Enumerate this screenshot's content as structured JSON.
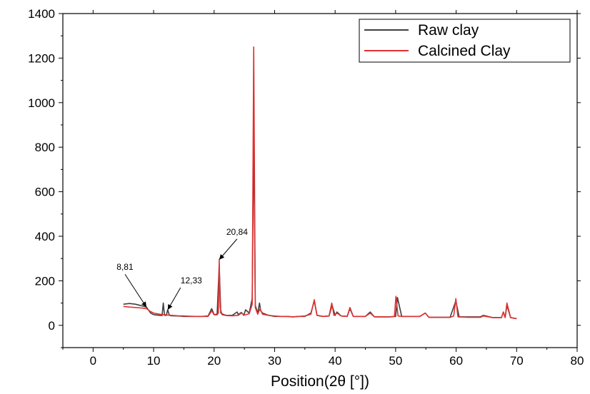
{
  "chart_data": {
    "type": "line",
    "title": "",
    "xlabel": "Position(2θ [°])",
    "ylabel": "",
    "xlim": [
      -5,
      80
    ],
    "ylim": [
      -100,
      1400
    ],
    "xticks": [
      0,
      10,
      20,
      30,
      40,
      50,
      60,
      70,
      80
    ],
    "yticks": [
      0,
      200,
      400,
      600,
      800,
      1000,
      1200,
      1400
    ],
    "grid": false,
    "legend_position": "top-right",
    "colors": {
      "raw": "#404040",
      "calcined": "#e03131",
      "axis": "#000000"
    },
    "series": [
      {
        "name": "Raw clay",
        "x": [
          5,
          6,
          7,
          8,
          8.81,
          9.5,
          10,
          11,
          11.4,
          11.6,
          11.8,
          12.1,
          12.33,
          12.6,
          13,
          14,
          15,
          16,
          17,
          18,
          19,
          19.6,
          20,
          20.5,
          20.84,
          21.1,
          21.6,
          22,
          23,
          23.8,
          24,
          24.5,
          24.9,
          25.2,
          25.8,
          26.3,
          26.55,
          26.8,
          27.2,
          27.5,
          27.7,
          28,
          29,
          30,
          31,
          32,
          33,
          34,
          35,
          36,
          36.55,
          37,
          38,
          39,
          39.5,
          40,
          40.3,
          41,
          42,
          42.45,
          43,
          44,
          45,
          45.8,
          46.5,
          48,
          49,
          50,
          50.3,
          51,
          52,
          53,
          54,
          54.9,
          55.5,
          57,
          59,
          59.95,
          60.5,
          62,
          64,
          64.5,
          66,
          67.5,
          67.8,
          68.1,
          68.4,
          69,
          70
        ],
        "values": [
          95,
          98,
          95,
          88,
          82,
          55,
          48,
          45,
          44,
          100,
          45,
          45,
          70,
          45,
          43,
          42,
          40,
          40,
          40,
          40,
          42,
          75,
          48,
          50,
          270,
          55,
          48,
          45,
          45,
          60,
          48,
          58,
          45,
          70,
          55,
          120,
          880,
          90,
          55,
          100,
          65,
          55,
          45,
          40,
          40,
          40,
          38,
          40,
          40,
          55,
          110,
          45,
          40,
          42,
          90,
          45,
          60,
          42,
          40,
          75,
          40,
          40,
          40,
          60,
          38,
          38,
          38,
          40,
          125,
          40,
          40,
          40,
          40,
          55,
          36,
          36,
          36,
          110,
          38,
          38,
          38,
          45,
          35,
          35,
          60,
          35,
          90,
          35,
          30
        ]
      },
      {
        "name": "Calcined Clay",
        "x": [
          5,
          6,
          7,
          8,
          8.81,
          9.5,
          10,
          11,
          11.5,
          12,
          12.33,
          13,
          14,
          15,
          16,
          17,
          18,
          19,
          19.6,
          20,
          20.5,
          20.7,
          20.84,
          21.0,
          21.3,
          22,
          23,
          24,
          24.5,
          25,
          25.8,
          26.3,
          26.55,
          26.8,
          27.2,
          27.6,
          28,
          29,
          30,
          31,
          32,
          33,
          34,
          35,
          36,
          36.55,
          37,
          38,
          39,
          39.45,
          39.8,
          40.3,
          41,
          42,
          42.45,
          43,
          44,
          45,
          45.8,
          46.5,
          48,
          49,
          49.8,
          50.05,
          50.4,
          51,
          52,
          53,
          54,
          54.9,
          55.5,
          57,
          59,
          59.6,
          59.95,
          60.3,
          62,
          64,
          64.5,
          66,
          67.5,
          67.8,
          68.1,
          68.4,
          69,
          70
        ],
        "values": [
          85,
          82,
          80,
          78,
          75,
          62,
          55,
          50,
          48,
          47,
          46,
          45,
          43,
          42,
          41,
          40,
          40,
          40,
          65,
          47,
          47,
          55,
          295,
          80,
          48,
          44,
          43,
          45,
          55,
          46,
          52,
          95,
          1250,
          80,
          50,
          75,
          50,
          45,
          42,
          40,
          40,
          38,
          40,
          42,
          50,
          115,
          45,
          40,
          42,
          100,
          45,
          55,
          42,
          40,
          80,
          40,
          40,
          40,
          55,
          38,
          38,
          38,
          40,
          130,
          42,
          40,
          40,
          40,
          40,
          55,
          36,
          36,
          36,
          42,
          120,
          38,
          36,
          36,
          42,
          35,
          35,
          60,
          35,
          100,
          35,
          30
        ]
      }
    ],
    "annotations": [
      {
        "text": "8,81",
        "x": 8.81,
        "y": 82
      },
      {
        "text": "12,33",
        "x": 12.33,
        "y": 70
      },
      {
        "text": "20,84",
        "x": 20.84,
        "y": 295
      }
    ]
  }
}
